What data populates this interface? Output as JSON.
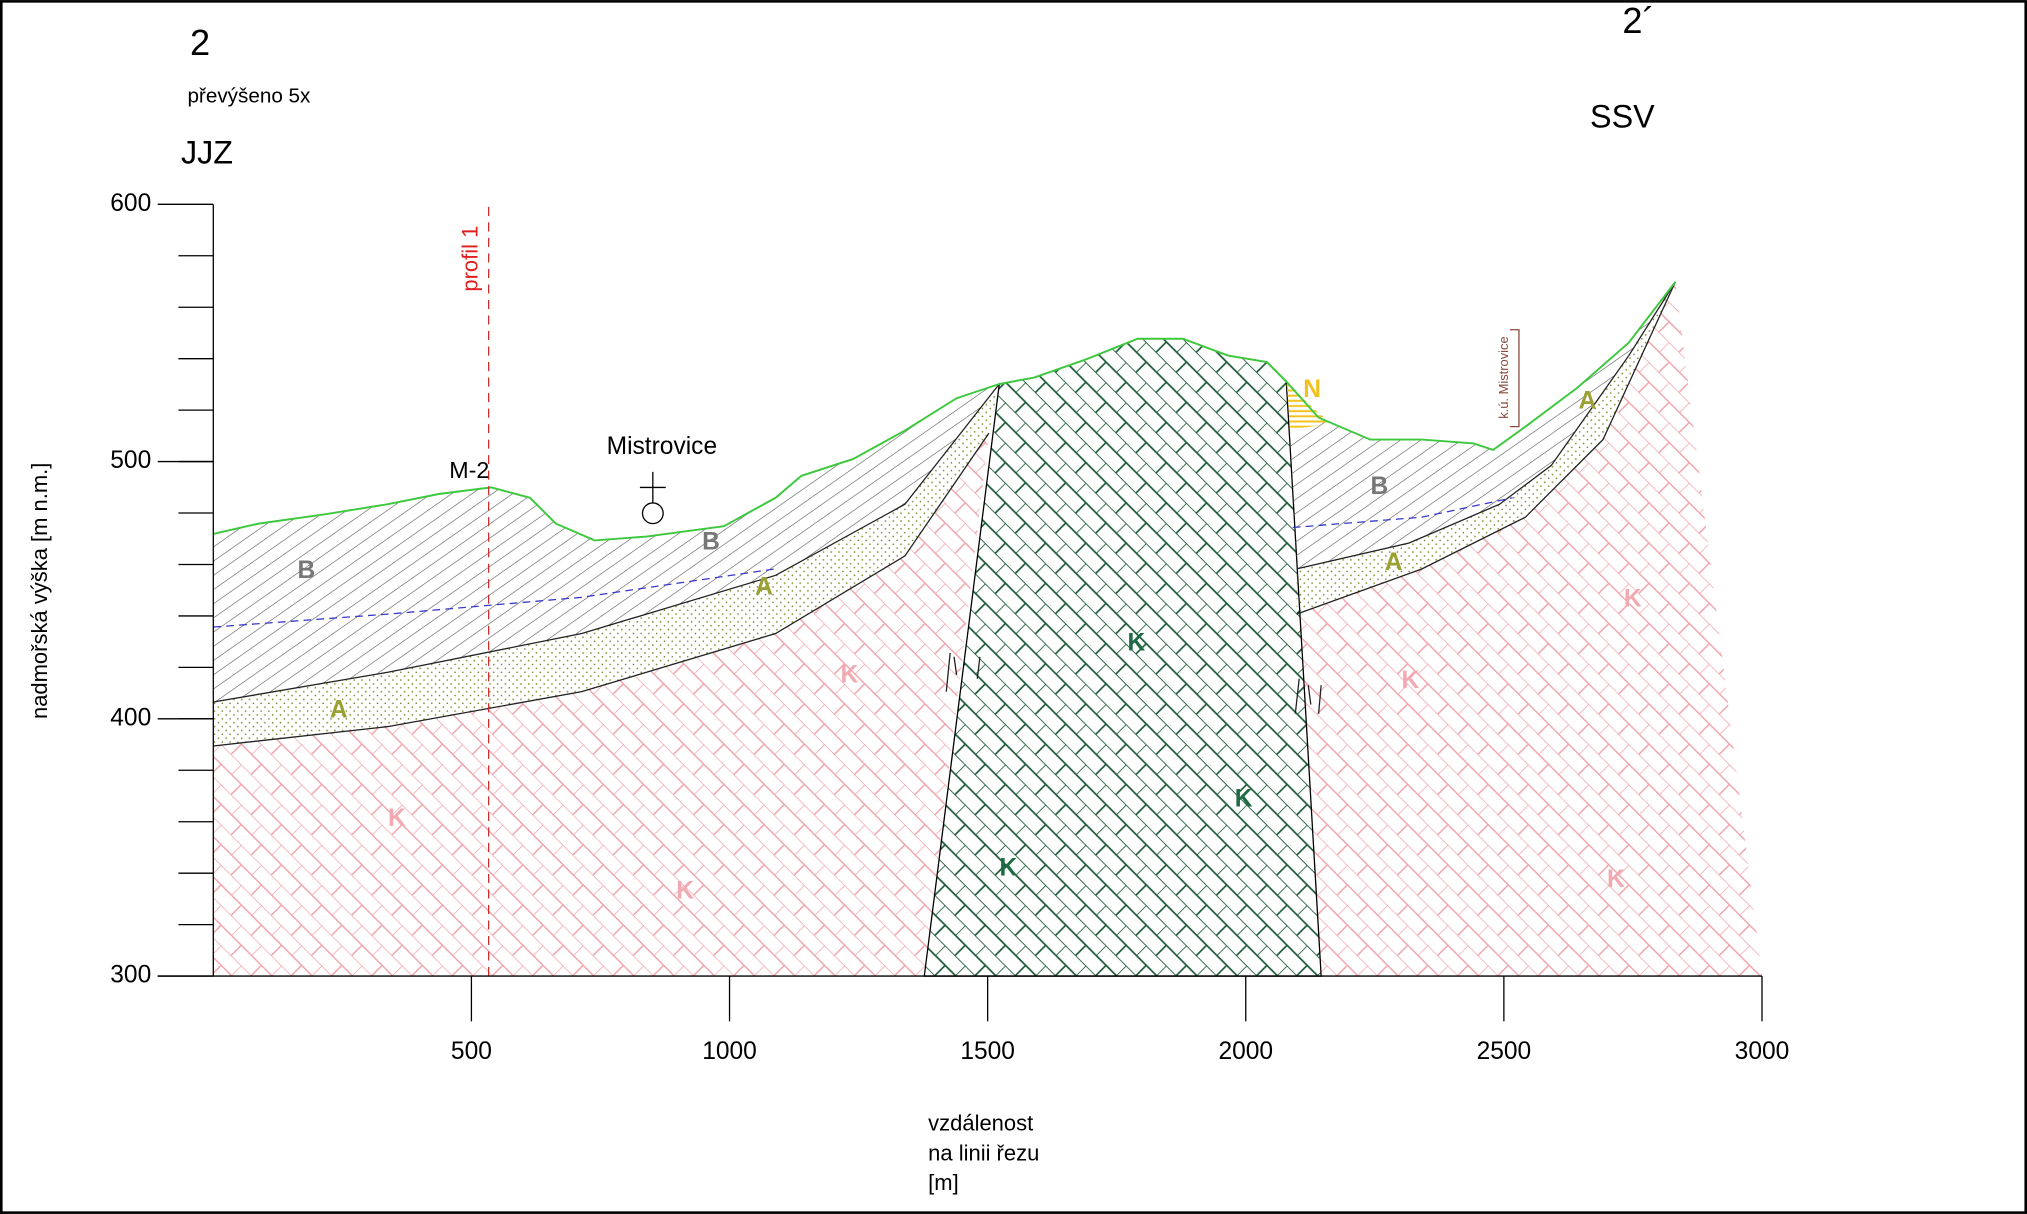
{
  "header": {
    "profile_start": "2",
    "exaggeration": "převýšeno 5x",
    "direction_left": "JJZ",
    "profile_end": "2´",
    "direction_right": "SSV"
  },
  "axes": {
    "y_label": "nadmořská výška [m n.m.]",
    "x_label": [
      "vzdálenost",
      "na linii řezu",
      "[m]"
    ],
    "xlim": [
      0,
      3000
    ],
    "ylim": [
      300,
      600
    ],
    "xticks": [
      500,
      1000,
      1500,
      2000,
      2500,
      3000
    ],
    "yticks": [
      300,
      400,
      500,
      600
    ]
  },
  "labels": {
    "profile": "profil 1",
    "well": "M-2",
    "village": "Mistrovice",
    "cadastre": "k.ú. Mistrovice"
  },
  "units": [
    "B",
    "B",
    "A",
    "A",
    "K",
    "K",
    "K",
    "K",
    "K",
    "K",
    "N",
    "B",
    "A",
    "A",
    "K",
    "K",
    "K"
  ]
}
